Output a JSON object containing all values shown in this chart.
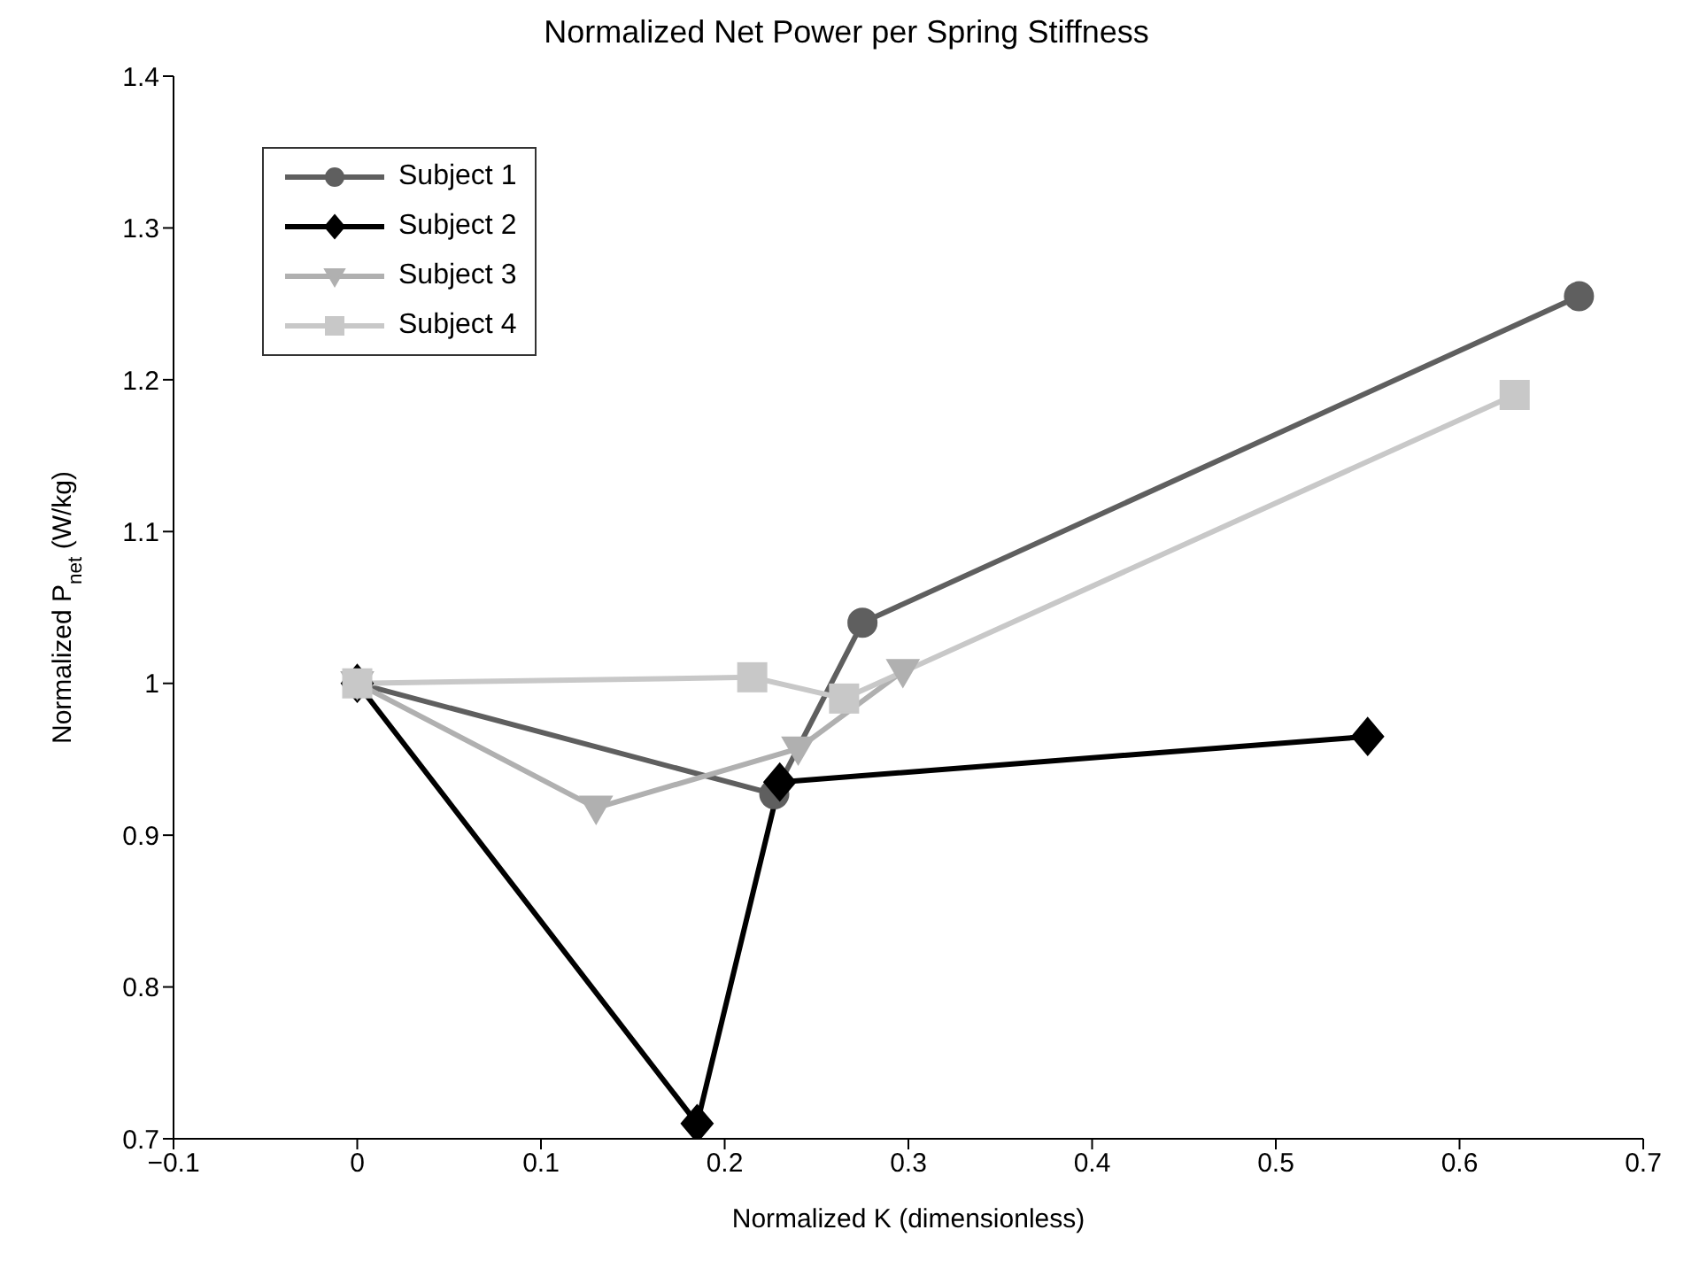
{
  "chart_data": {
    "type": "line",
    "title": "Normalized Net Power per Spring Stiffness",
    "xlabel": "Normalized K (dimensionless)",
    "ylabel": "Normalized P$_{net}$ (W/kg)",
    "xlim": [
      -0.1,
      0.7
    ],
    "xticks": [
      {
        "value": -0.1,
        "label": "−0.1"
      },
      0,
      0.1,
      0.2,
      0.3,
      0.4,
      0.5,
      0.6,
      0.7
    ],
    "ylim": [
      0.7,
      1.4
    ],
    "yticks": [
      0.7,
      0.8,
      0.9,
      1,
      1.1,
      1.2,
      1.3,
      1.4
    ],
    "grid": false,
    "legend": "top left",
    "line_style": "solid",
    "series": [
      {
        "name": "Subject 1",
        "color": "#5f5f5f",
        "marker": "circle",
        "x": [
          0,
          0.227,
          0.275,
          0.665
        ],
        "values": [
          1.0,
          0.927,
          1.04,
          1.255
        ]
      },
      {
        "name": "Subject 2",
        "color": "#000000",
        "marker": "diamond",
        "x": [
          0,
          0.185,
          0.23,
          0.55
        ],
        "values": [
          1.0,
          0.71,
          0.935,
          0.965
        ]
      },
      {
        "name": "Subject 3",
        "color": "#b0b0b0",
        "marker": "triangle",
        "x": [
          0,
          0.13,
          0.24,
          0.297
        ],
        "values": [
          1.0,
          0.918,
          0.957,
          1.008
        ]
      },
      {
        "name": "Subject 4",
        "color": "#c8c8c8",
        "marker": "square",
        "x": [
          0,
          0.215,
          0.265,
          0.63
        ],
        "values": [
          1.0,
          1.004,
          0.99,
          1.19
        ]
      }
    ]
  }
}
